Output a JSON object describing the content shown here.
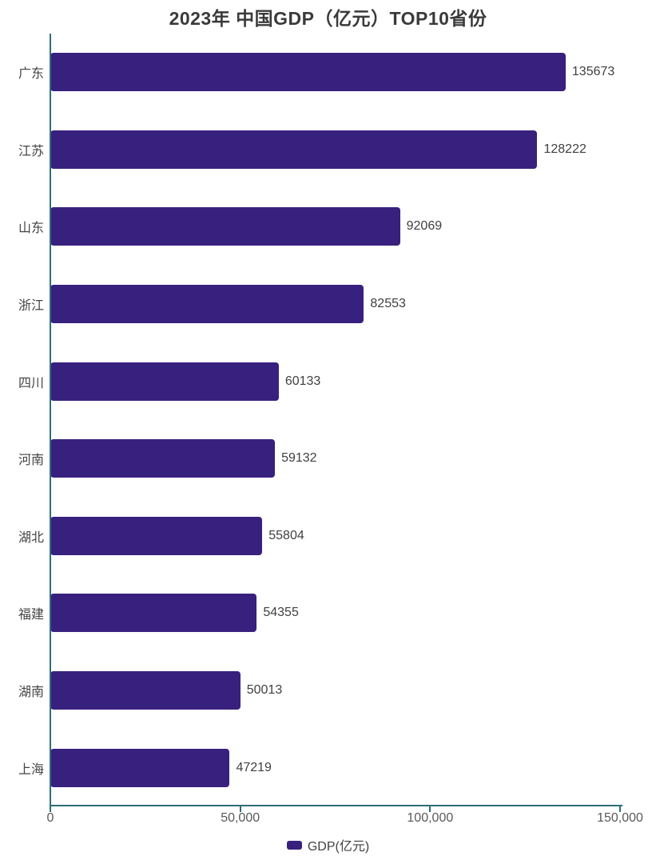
{
  "chart_data": {
    "type": "bar",
    "orientation": "horizontal",
    "title": "2023年 中国GDP（亿元）TOP10省份",
    "legend": "GDP(亿元)",
    "legend_position": "bottom",
    "categories": [
      "广东",
      "江苏",
      "山东",
      "浙江",
      "四川",
      "河南",
      "湖北",
      "福建",
      "湖南",
      "上海"
    ],
    "values": [
      135673,
      128222,
      92069,
      82553,
      60133,
      59132,
      55804,
      54355,
      50013,
      47219
    ],
    "xlim": [
      0,
      150000
    ],
    "x_ticks": [
      {
        "value": 0,
        "label": "0"
      },
      {
        "value": 50000,
        "label": "50,000"
      },
      {
        "value": 100000,
        "label": "100,000"
      },
      {
        "value": 150000,
        "label": "150,000"
      }
    ],
    "grid": false,
    "colors": {
      "bar": "#38217E",
      "axis": "#2E6E78",
      "title": "#3A3A3A",
      "category_label": "#444444",
      "value_label": "#404040",
      "tick_label": "#595959",
      "legend_text": "#3F3F3F",
      "background": "#FFFFFF"
    }
  }
}
